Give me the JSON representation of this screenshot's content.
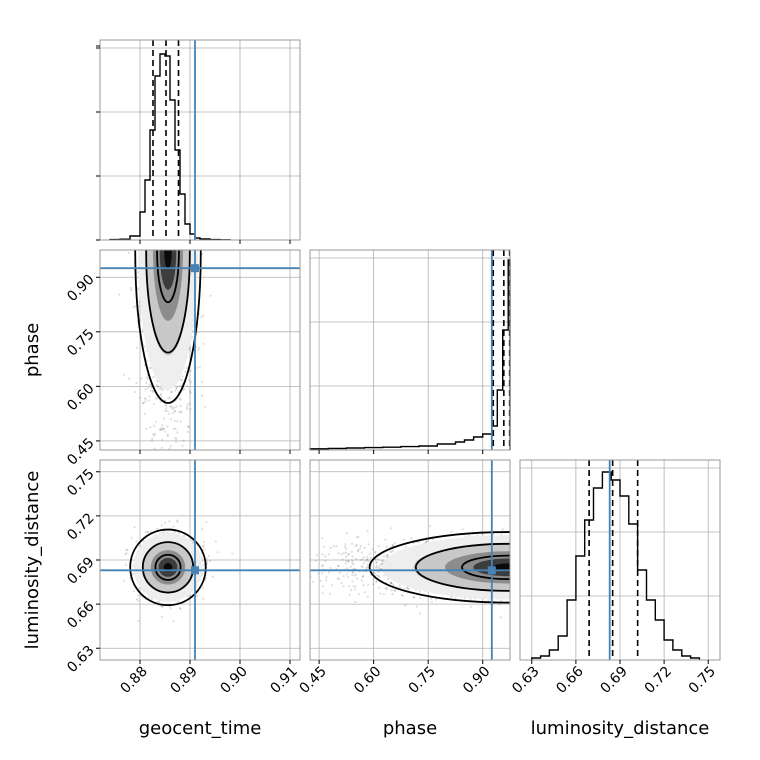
{
  "chart_data": {
    "type": "corner",
    "parameters": [
      "geocent_time",
      "phase",
      "luminosity_distance"
    ],
    "truths": [
      0.891,
      0.925,
      0.683
    ],
    "truth_color": "#4682b4",
    "ranges": [
      [
        0.872,
        0.912
      ],
      [
        0.425,
        0.975
      ],
      [
        0.622,
        0.758
      ]
    ],
    "ticks": [
      [
        0.88,
        0.89,
        0.9,
        0.91
      ],
      [
        0.45,
        0.6,
        0.75,
        0.9
      ],
      [
        0.63,
        0.66,
        0.69,
        0.72,
        0.75
      ]
    ],
    "tick_labels": [
      [
        "0.88",
        "0.89",
        "0.90",
        "0.91"
      ],
      [
        "0.45",
        "0.60",
        "0.75",
        "0.90"
      ],
      [
        "0.63",
        "0.66",
        "0.69",
        "0.72",
        "0.75"
      ]
    ],
    "quantiles": [
      [
        0.8826,
        0.8852,
        0.8877
      ],
      [
        0.929,
        0.958,
        0.974
      ],
      [
        0.669,
        0.685,
        0.702
      ]
    ],
    "histograms": [
      {
        "edges": [
          0.874,
          0.876,
          0.878,
          0.88,
          0.881,
          0.882,
          0.883,
          0.884,
          0.885,
          0.886,
          0.887,
          0.888,
          0.889,
          0.89,
          0.891,
          0.892,
          0.894,
          0.896,
          0.898
        ],
        "counts": [
          0.002,
          0.004,
          0.02,
          0.14,
          0.3,
          0.55,
          0.82,
          0.93,
          0.92,
          0.7,
          0.45,
          0.23,
          0.08,
          0.03,
          0.01,
          0.005,
          0.002,
          0.001
        ]
      },
      {
        "edges": [
          0.425,
          0.475,
          0.525,
          0.575,
          0.625,
          0.675,
          0.725,
          0.775,
          0.825,
          0.85,
          0.875,
          0.9,
          0.925,
          0.94,
          0.955,
          0.97,
          0.975
        ],
        "counts": [
          0.006,
          0.008,
          0.01,
          0.012,
          0.014,
          0.017,
          0.02,
          0.03,
          0.04,
          0.05,
          0.065,
          0.08,
          0.12,
          0.3,
          0.6,
          0.95
        ]
      },
      {
        "edges": [
          0.63,
          0.636,
          0.642,
          0.648,
          0.654,
          0.66,
          0.666,
          0.672,
          0.678,
          0.684,
          0.69,
          0.696,
          0.702,
          0.708,
          0.714,
          0.72,
          0.726,
          0.732,
          0.738,
          0.744
        ],
        "counts": [
          0.01,
          0.02,
          0.05,
          0.12,
          0.3,
          0.52,
          0.7,
          0.86,
          0.94,
          0.9,
          0.82,
          0.68,
          0.45,
          0.3,
          0.2,
          0.1,
          0.05,
          0.02,
          0.01
        ]
      }
    ],
    "posterior_peaks": {
      "phase_vs_geocent_time": {
        "x": 0.8856,
        "y": 0.97
      },
      "luminosity_distance_vs_geocent_time": {
        "x": 0.8856,
        "y": 0.685
      },
      "luminosity_distance_vs_phase": {
        "x": 0.97,
        "y": 0.685
      }
    },
    "grid": true,
    "legend": "none"
  }
}
